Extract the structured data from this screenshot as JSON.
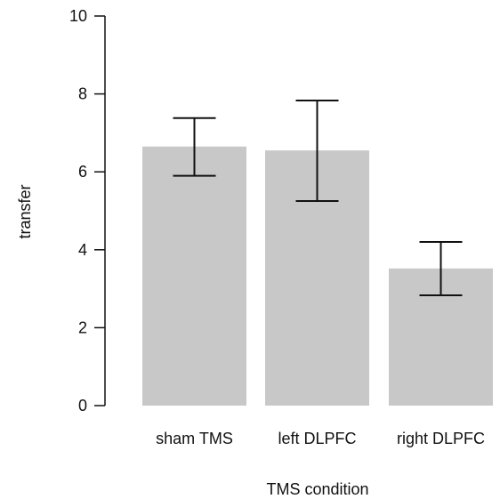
{
  "chart_data": {
    "type": "bar",
    "categories": [
      "sham TMS",
      "left DLPFC",
      "right DLPFC"
    ],
    "values": [
      6.65,
      6.55,
      3.52
    ],
    "error_low": [
      5.9,
      5.25,
      2.83
    ],
    "error_high": [
      7.38,
      7.83,
      4.2
    ],
    "xlabel": "TMS condition",
    "ylabel": "transfer",
    "ylim": [
      0,
      10
    ],
    "yticks": [
      "0",
      "2",
      "4",
      "6",
      "8",
      "10"
    ],
    "grid": false,
    "legend": "none",
    "colors": {
      "bar": "#c8c8c8",
      "axis": "#111111",
      "error": "#111111"
    }
  }
}
